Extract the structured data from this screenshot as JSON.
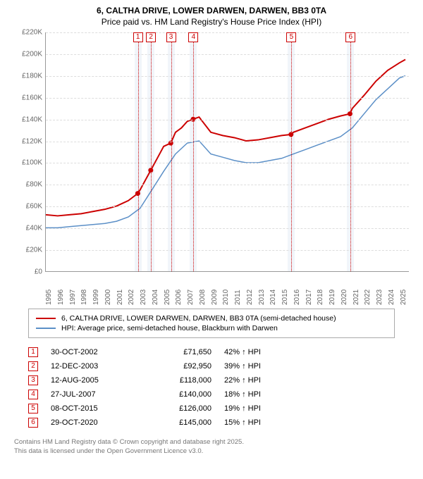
{
  "title_line1": "6, CALTHA DRIVE, LOWER DARWEN, DARWEN, BB3 0TA",
  "title_line2": "Price paid vs. HM Land Registry's House Price Index (HPI)",
  "colors": {
    "series_property": "#cc0000",
    "series_hpi": "#5b8fc7",
    "marker_border": "#cc0000",
    "grid": "#dddddd",
    "axis": "#999999",
    "shade": "#e8eef7",
    "text_muted": "#777777"
  },
  "chart": {
    "type": "line",
    "xlim": [
      1995,
      2025.8
    ],
    "ylim": [
      0,
      220000
    ],
    "ytick_step": 20000,
    "yticks": [
      "£0",
      "£20K",
      "£40K",
      "£60K",
      "£80K",
      "£100K",
      "£120K",
      "£140K",
      "£160K",
      "£180K",
      "£200K",
      "£220K"
    ],
    "xticks": [
      1995,
      1996,
      1997,
      1998,
      1999,
      2000,
      2001,
      2002,
      2003,
      2004,
      2005,
      2006,
      2007,
      2008,
      2009,
      2010,
      2011,
      2012,
      2013,
      2014,
      2015,
      2016,
      2017,
      2018,
      2019,
      2020,
      2021,
      2022,
      2023,
      2024,
      2025
    ],
    "line_width_property": 2,
    "line_width_hpi": 1.5,
    "series_property": [
      {
        "x": 1995,
        "y": 52000
      },
      {
        "x": 1996,
        "y": 51000
      },
      {
        "x": 1997,
        "y": 52000
      },
      {
        "x": 1998,
        "y": 53000
      },
      {
        "x": 1999,
        "y": 55000
      },
      {
        "x": 2000,
        "y": 57000
      },
      {
        "x": 2001,
        "y": 60000
      },
      {
        "x": 2002,
        "y": 65000
      },
      {
        "x": 2002.8,
        "y": 71650
      },
      {
        "x": 2003,
        "y": 75000
      },
      {
        "x": 2003.9,
        "y": 92950
      },
      {
        "x": 2004,
        "y": 95000
      },
      {
        "x": 2004.5,
        "y": 105000
      },
      {
        "x": 2005,
        "y": 115000
      },
      {
        "x": 2005.6,
        "y": 118000
      },
      {
        "x": 2006,
        "y": 128000
      },
      {
        "x": 2006.5,
        "y": 132000
      },
      {
        "x": 2007,
        "y": 138000
      },
      {
        "x": 2007.5,
        "y": 140000
      },
      {
        "x": 2008,
        "y": 142000
      },
      {
        "x": 2008.5,
        "y": 135000
      },
      {
        "x": 2009,
        "y": 128000
      },
      {
        "x": 2010,
        "y": 125000
      },
      {
        "x": 2011,
        "y": 123000
      },
      {
        "x": 2012,
        "y": 120000
      },
      {
        "x": 2013,
        "y": 121000
      },
      {
        "x": 2014,
        "y": 123000
      },
      {
        "x": 2015,
        "y": 125000
      },
      {
        "x": 2015.8,
        "y": 126000
      },
      {
        "x": 2016,
        "y": 128000
      },
      {
        "x": 2017,
        "y": 132000
      },
      {
        "x": 2018,
        "y": 136000
      },
      {
        "x": 2019,
        "y": 140000
      },
      {
        "x": 2020,
        "y": 143000
      },
      {
        "x": 2020.8,
        "y": 145000
      },
      {
        "x": 2021,
        "y": 150000
      },
      {
        "x": 2022,
        "y": 162000
      },
      {
        "x": 2023,
        "y": 175000
      },
      {
        "x": 2024,
        "y": 185000
      },
      {
        "x": 2025,
        "y": 192000
      },
      {
        "x": 2025.5,
        "y": 195000
      }
    ],
    "series_hpi": [
      {
        "x": 1995,
        "y": 40000
      },
      {
        "x": 1996,
        "y": 40000
      },
      {
        "x": 1997,
        "y": 41000
      },
      {
        "x": 1998,
        "y": 42000
      },
      {
        "x": 1999,
        "y": 43000
      },
      {
        "x": 2000,
        "y": 44000
      },
      {
        "x": 2001,
        "y": 46000
      },
      {
        "x": 2002,
        "y": 50000
      },
      {
        "x": 2003,
        "y": 58000
      },
      {
        "x": 2004,
        "y": 75000
      },
      {
        "x": 2005,
        "y": 92000
      },
      {
        "x": 2006,
        "y": 108000
      },
      {
        "x": 2007,
        "y": 118000
      },
      {
        "x": 2008,
        "y": 120000
      },
      {
        "x": 2009,
        "y": 108000
      },
      {
        "x": 2010,
        "y": 105000
      },
      {
        "x": 2011,
        "y": 102000
      },
      {
        "x": 2012,
        "y": 100000
      },
      {
        "x": 2013,
        "y": 100000
      },
      {
        "x": 2014,
        "y": 102000
      },
      {
        "x": 2015,
        "y": 104000
      },
      {
        "x": 2016,
        "y": 108000
      },
      {
        "x": 2017,
        "y": 112000
      },
      {
        "x": 2018,
        "y": 116000
      },
      {
        "x": 2019,
        "y": 120000
      },
      {
        "x": 2020,
        "y": 124000
      },
      {
        "x": 2021,
        "y": 132000
      },
      {
        "x": 2022,
        "y": 145000
      },
      {
        "x": 2023,
        "y": 158000
      },
      {
        "x": 2024,
        "y": 168000
      },
      {
        "x": 2025,
        "y": 178000
      },
      {
        "x": 2025.5,
        "y": 180000
      }
    ],
    "markers": [
      {
        "n": "1",
        "x": 2002.8
      },
      {
        "n": "2",
        "x": 2003.9
      },
      {
        "n": "3",
        "x": 2005.6
      },
      {
        "n": "4",
        "x": 2007.5
      },
      {
        "n": "5",
        "x": 2015.8
      },
      {
        "n": "6",
        "x": 2020.8
      }
    ],
    "shade_width_years": 0.6
  },
  "legend": {
    "items": [
      {
        "color": "#cc0000",
        "label": "6, CALTHA DRIVE, LOWER DARWEN, DARWEN, BB3 0TA (semi-detached house)"
      },
      {
        "color": "#5b8fc7",
        "label": "HPI: Average price, semi-detached house, Blackburn with Darwen"
      }
    ]
  },
  "sales": [
    {
      "n": "1",
      "date": "30-OCT-2002",
      "price": "£71,650",
      "pct": "42% ↑ HPI"
    },
    {
      "n": "2",
      "date": "12-DEC-2003",
      "price": "£92,950",
      "pct": "39% ↑ HPI"
    },
    {
      "n": "3",
      "date": "12-AUG-2005",
      "price": "£118,000",
      "pct": "22% ↑ HPI"
    },
    {
      "n": "4",
      "date": "27-JUL-2007",
      "price": "£140,000",
      "pct": "18% ↑ HPI"
    },
    {
      "n": "5",
      "date": "08-OCT-2015",
      "price": "£126,000",
      "pct": "19% ↑ HPI"
    },
    {
      "n": "6",
      "date": "29-OCT-2020",
      "price": "£145,000",
      "pct": "15% ↑ HPI"
    }
  ],
  "footer": {
    "line1": "Contains HM Land Registry data © Crown copyright and database right 2025.",
    "line2": "This data is licensed under the Open Government Licence v3.0."
  }
}
